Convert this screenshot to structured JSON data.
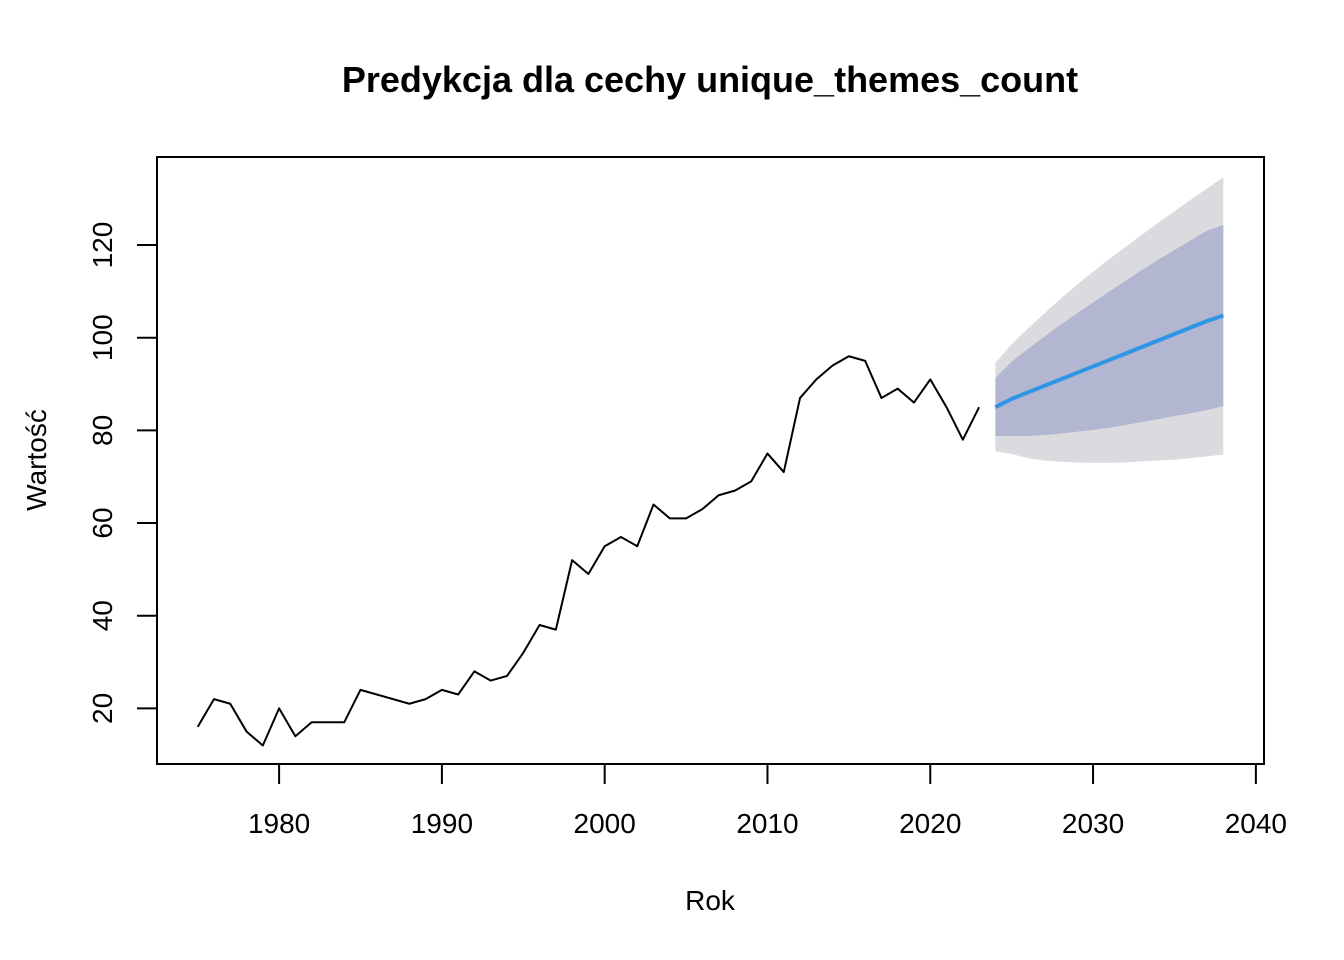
{
  "chart_data": {
    "type": "line",
    "title": "Predykcja dla cechy unique_themes_count",
    "xlabel": "Rok",
    "ylabel": "Wartość",
    "xlim": [
      1972.5,
      2040.5
    ],
    "ylim": [
      8,
      139
    ],
    "x_ticks": [
      1980,
      1990,
      2000,
      2010,
      2020,
      2030,
      2040
    ],
    "y_ticks": [
      20,
      40,
      60,
      80,
      100,
      120
    ],
    "colors": {
      "history": "#000000",
      "forecast": "#2f96e6",
      "band80": "#b2b6d0",
      "band95": "#dadadf"
    },
    "history": {
      "x": [
        1975,
        1976,
        1977,
        1978,
        1979,
        1980,
        1981,
        1982,
        1983,
        1984,
        1985,
        1986,
        1987,
        1988,
        1989,
        1990,
        1991,
        1992,
        1993,
        1994,
        1995,
        1996,
        1997,
        1998,
        1999,
        2000,
        2001,
        2002,
        2003,
        2004,
        2005,
        2006,
        2007,
        2008,
        2009,
        2010,
        2011,
        2012,
        2013,
        2014,
        2015,
        2016,
        2017,
        2018,
        2019,
        2020,
        2021,
        2022,
        2023
      ],
      "y": [
        16,
        22,
        21,
        15,
        12,
        20,
        14,
        17,
        17,
        17,
        24,
        23,
        22,
        21,
        22,
        24,
        23,
        28,
        26,
        27,
        32,
        38,
        37,
        52,
        49,
        55,
        57,
        55,
        64,
        61,
        61,
        63,
        66,
        67,
        69,
        75,
        71,
        87,
        91,
        94,
        96,
        95,
        87,
        89,
        86,
        91,
        85,
        78,
        85
      ]
    },
    "forecast": {
      "x": [
        2024,
        2025,
        2026,
        2027,
        2028,
        2029,
        2030,
        2031,
        2032,
        2033,
        2034,
        2035,
        2036,
        2037,
        2038
      ],
      "mean": [
        85,
        86.8,
        88.2,
        89.6,
        91,
        92.4,
        93.8,
        95.2,
        96.6,
        98,
        99.4,
        100.8,
        102.2,
        103.6,
        104.8
      ],
      "lo80": [
        78.8,
        78.8,
        78.8,
        79.0,
        79.3,
        79.7,
        80.1,
        80.6,
        81.2,
        81.8,
        82.4,
        83.1,
        83.7,
        84.4,
        85.2
      ],
      "hi80": [
        91.3,
        94.8,
        97.6,
        100.2,
        102.8,
        105.2,
        107.6,
        110.0,
        112.3,
        114.6,
        116.8,
        118.9,
        121.0,
        123.1,
        124.3
      ],
      "lo95": [
        75.5,
        74.9,
        74.0,
        73.5,
        73.2,
        73.1,
        73.0,
        73.0,
        73.1,
        73.3,
        73.5,
        73.7,
        74.0,
        74.4,
        74.8
      ],
      "hi95": [
        94.6,
        98.6,
        102.0,
        105.2,
        108.4,
        111.4,
        114.2,
        117.0,
        119.6,
        122.2,
        124.8,
        127.3,
        129.8,
        132.2,
        134.6
      ]
    }
  }
}
